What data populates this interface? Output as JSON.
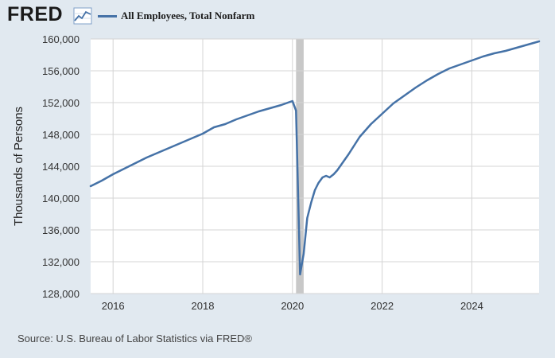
{
  "header": {
    "logo": "FRED",
    "logo_icon": "line-graph-icon",
    "legend_label": "All Employees, Total Nonfarm",
    "legend_color": "#4572a7"
  },
  "source": "Source: U.S. Bureau of Labor Statistics via FRED®",
  "chart_data": {
    "type": "line",
    "title": "",
    "xlabel": "",
    "ylabel": "Thousands of Persons",
    "xlim": [
      2015.5,
      2025.5
    ],
    "ylim": [
      128000,
      160000
    ],
    "yticks": [
      128000,
      132000,
      136000,
      140000,
      144000,
      148000,
      152000,
      156000,
      160000
    ],
    "ytick_labels": [
      "128,000",
      "132,000",
      "136,000",
      "140,000",
      "144,000",
      "148,000",
      "152,000",
      "156,000",
      "160,000"
    ],
    "xticks": [
      2016,
      2018,
      2020,
      2022,
      2024
    ],
    "xtick_labels": [
      "2016",
      "2018",
      "2020",
      "2022",
      "2024"
    ],
    "grid": true,
    "legend_position": "top-left",
    "recession_shading": [
      2020.08,
      2020.25
    ],
    "recession_color": "#c8c8c8",
    "series": [
      {
        "name": "All Employees, Total Nonfarm",
        "color": "#4572a7",
        "x": [
          2015.5,
          2015.75,
          2016.0,
          2016.25,
          2016.5,
          2016.75,
          2017.0,
          2017.25,
          2017.5,
          2017.75,
          2018.0,
          2018.25,
          2018.5,
          2018.75,
          2019.0,
          2019.25,
          2019.5,
          2019.75,
          2020.0,
          2020.08,
          2020.17,
          2020.25,
          2020.33,
          2020.42,
          2020.5,
          2020.58,
          2020.67,
          2020.75,
          2020.83,
          2020.92,
          2021.0,
          2021.25,
          2021.5,
          2021.75,
          2022.0,
          2022.25,
          2022.5,
          2022.75,
          2023.0,
          2023.25,
          2023.5,
          2023.75,
          2024.0,
          2024.25,
          2024.5,
          2024.75,
          2025.0,
          2025.25,
          2025.5
        ],
        "values": [
          141500,
          142200,
          143000,
          143700,
          144400,
          145100,
          145700,
          146300,
          146900,
          147500,
          148100,
          148900,
          149300,
          149900,
          150400,
          150900,
          151300,
          151700,
          152200,
          151000,
          130400,
          133000,
          137500,
          139500,
          141000,
          141900,
          142600,
          142800,
          142600,
          143000,
          143500,
          145500,
          147700,
          149300,
          150600,
          151900,
          152900,
          153900,
          154800,
          155600,
          156300,
          156800,
          157300,
          157800,
          158200,
          158500,
          158900,
          159300,
          159700
        ]
      }
    ]
  }
}
